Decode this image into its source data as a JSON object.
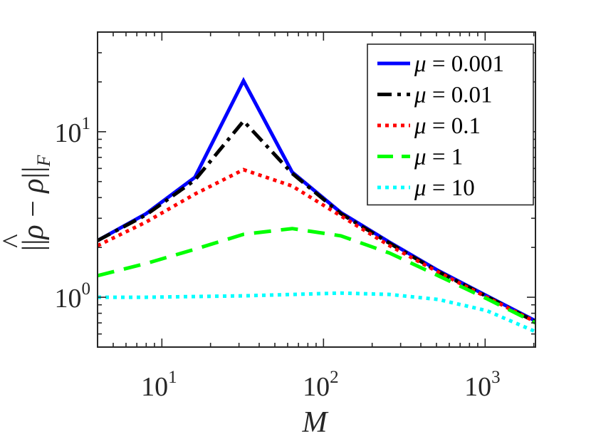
{
  "chart_data": {
    "type": "line",
    "xscale": "log",
    "yscale": "log",
    "xlim": [
      4,
      2048
    ],
    "ylim": [
      0.5,
      40
    ],
    "xlabel": "M",
    "ylabel": "||ρ̂ − ρ||_F",
    "ylabel_parts": {
      "open": "||",
      "rho_hat": "ρ",
      "hat": "^",
      "minus": " − ",
      "rho": "ρ",
      "close": "||",
      "sub": "F"
    },
    "xticks": [
      {
        "value": 10,
        "base": "10",
        "exp": "1"
      },
      {
        "value": 100,
        "base": "10",
        "exp": "2"
      },
      {
        "value": 1000,
        "base": "10",
        "exp": "3"
      }
    ],
    "yticks": [
      {
        "value": 1,
        "base": "10",
        "exp": "0"
      },
      {
        "value": 10,
        "base": "10",
        "exp": "1"
      }
    ],
    "legend_position": "top-right",
    "series": [
      {
        "name": "μ = 0.001",
        "label_symbol": "μ",
        "label_rest": " = 0.001",
        "color": "#0000ff",
        "style": "solid",
        "x": [
          4,
          8,
          16,
          32,
          64,
          128,
          256,
          512,
          1024,
          2048
        ],
        "y": [
          2.2,
          3.2,
          5.3,
          20.3,
          5.7,
          3.25,
          2.15,
          1.45,
          1.02,
          0.72
        ]
      },
      {
        "name": "μ = 0.01",
        "label_symbol": "μ",
        "label_rest": " = 0.01",
        "color": "#000000",
        "style": "dashdot",
        "x": [
          4,
          8,
          16,
          32,
          64,
          128,
          256,
          512,
          1024,
          2048
        ],
        "y": [
          2.2,
          3.15,
          5.1,
          11.6,
          5.6,
          3.2,
          2.12,
          1.43,
          1.01,
          0.71
        ]
      },
      {
        "name": "μ = 0.1",
        "label_symbol": "μ",
        "label_rest": " = 0.1",
        "color": "#ff0000",
        "style": "dotted",
        "x": [
          4,
          8,
          16,
          32,
          64,
          128,
          256,
          512,
          1024,
          2048
        ],
        "y": [
          2.05,
          2.85,
          4.2,
          5.9,
          4.7,
          3.1,
          2.05,
          1.42,
          1.0,
          0.71
        ]
      },
      {
        "name": "μ = 1",
        "label_symbol": "μ",
        "label_rest": " = 1",
        "color": "#00ff00",
        "style": "dashed",
        "x": [
          4,
          8,
          16,
          32,
          64,
          128,
          256,
          512,
          1024,
          2048
        ],
        "y": [
          1.35,
          1.6,
          1.95,
          2.4,
          2.6,
          2.35,
          1.85,
          1.35,
          0.98,
          0.7
        ]
      },
      {
        "name": "μ = 10",
        "label_symbol": "μ",
        "label_rest": " = 10",
        "color": "#00ffff",
        "style": "dotted",
        "x": [
          4,
          8,
          16,
          32,
          64,
          128,
          256,
          512,
          1024,
          2048
        ],
        "y": [
          1.0,
          1.0,
          1.01,
          1.02,
          1.04,
          1.06,
          1.04,
          0.97,
          0.83,
          0.62
        ]
      }
    ]
  }
}
